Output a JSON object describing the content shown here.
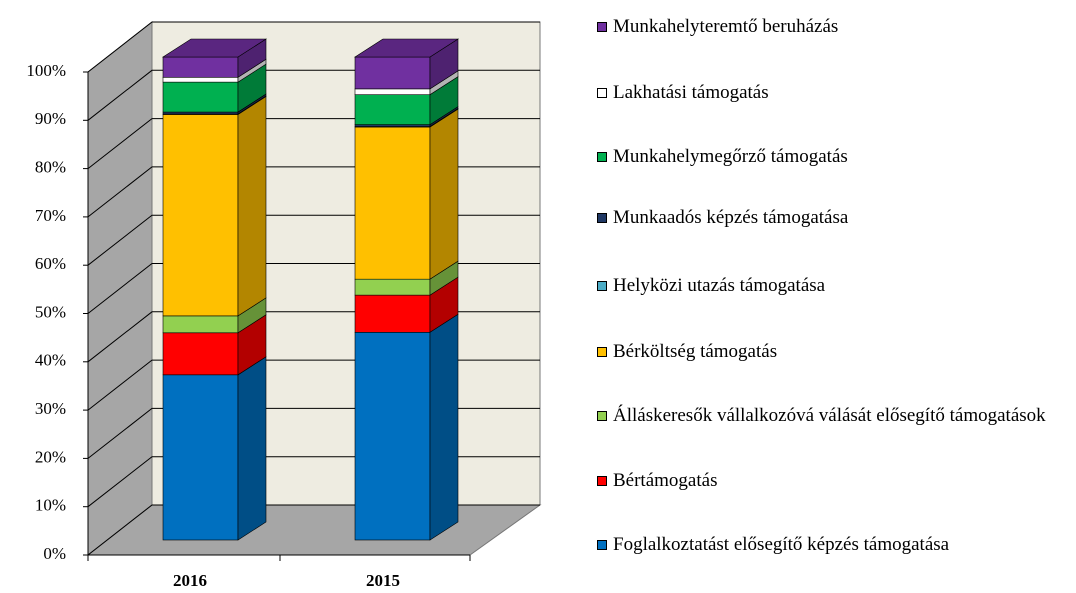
{
  "chart_data": {
    "type": "bar3d_stacked",
    "categories": [
      "2016",
      "2015"
    ],
    "series": [
      {
        "name": "Foglalkoztatást elősegítő képzés támogatása",
        "color": "#0070c0",
        "values": [
          34.2,
          43
        ]
      },
      {
        "name": "Bértámogatás",
        "color": "#ff0000",
        "values": [
          8.7,
          7.7
        ]
      },
      {
        "name": "Álláskeresők vállalkozóvá válását elősegítő támogatások",
        "color": "#92d050",
        "values": [
          3.5,
          3.3
        ]
      },
      {
        "name": "Bérköltség támogatás",
        "color": "#ffc000",
        "values": [
          41.7,
          31.5
        ]
      },
      {
        "name": "Helyközi utazás támogatása",
        "color": "#4bacc6",
        "values": [
          0.1,
          0.1
        ]
      },
      {
        "name": "Munkaadós képzés támogatása",
        "color": "#1f3864",
        "values": [
          0.4,
          0.4
        ]
      },
      {
        "name": "Munkahelymegőrző támogatás",
        "color": "#00b050",
        "values": [
          6.2,
          6.2
        ]
      },
      {
        "name": "Lakhatási támogatás",
        "color": "#ffffff",
        "values": [
          1.0,
          1.2
        ]
      },
      {
        "name": "Munkahelyteremtő beruházás",
        "color": "#7030a0",
        "values": [
          4.2,
          6.6
        ]
      }
    ],
    "ylim": [
      0,
      100
    ],
    "yticks": [
      {
        "value": 0,
        "label": "0%"
      },
      {
        "value": 10,
        "label": "10%"
      },
      {
        "value": 20,
        "label": "20%"
      },
      {
        "value": 30,
        "label": "30%"
      },
      {
        "value": 40,
        "label": "40%"
      },
      {
        "value": 50,
        "label": "50%"
      },
      {
        "value": 60,
        "label": "60%"
      },
      {
        "value": 70,
        "label": "70%"
      },
      {
        "value": 80,
        "label": "80%"
      },
      {
        "value": 90,
        "label": "90%"
      },
      {
        "value": 100,
        "label": "100%"
      }
    ],
    "grid": true,
    "legend": "right"
  }
}
